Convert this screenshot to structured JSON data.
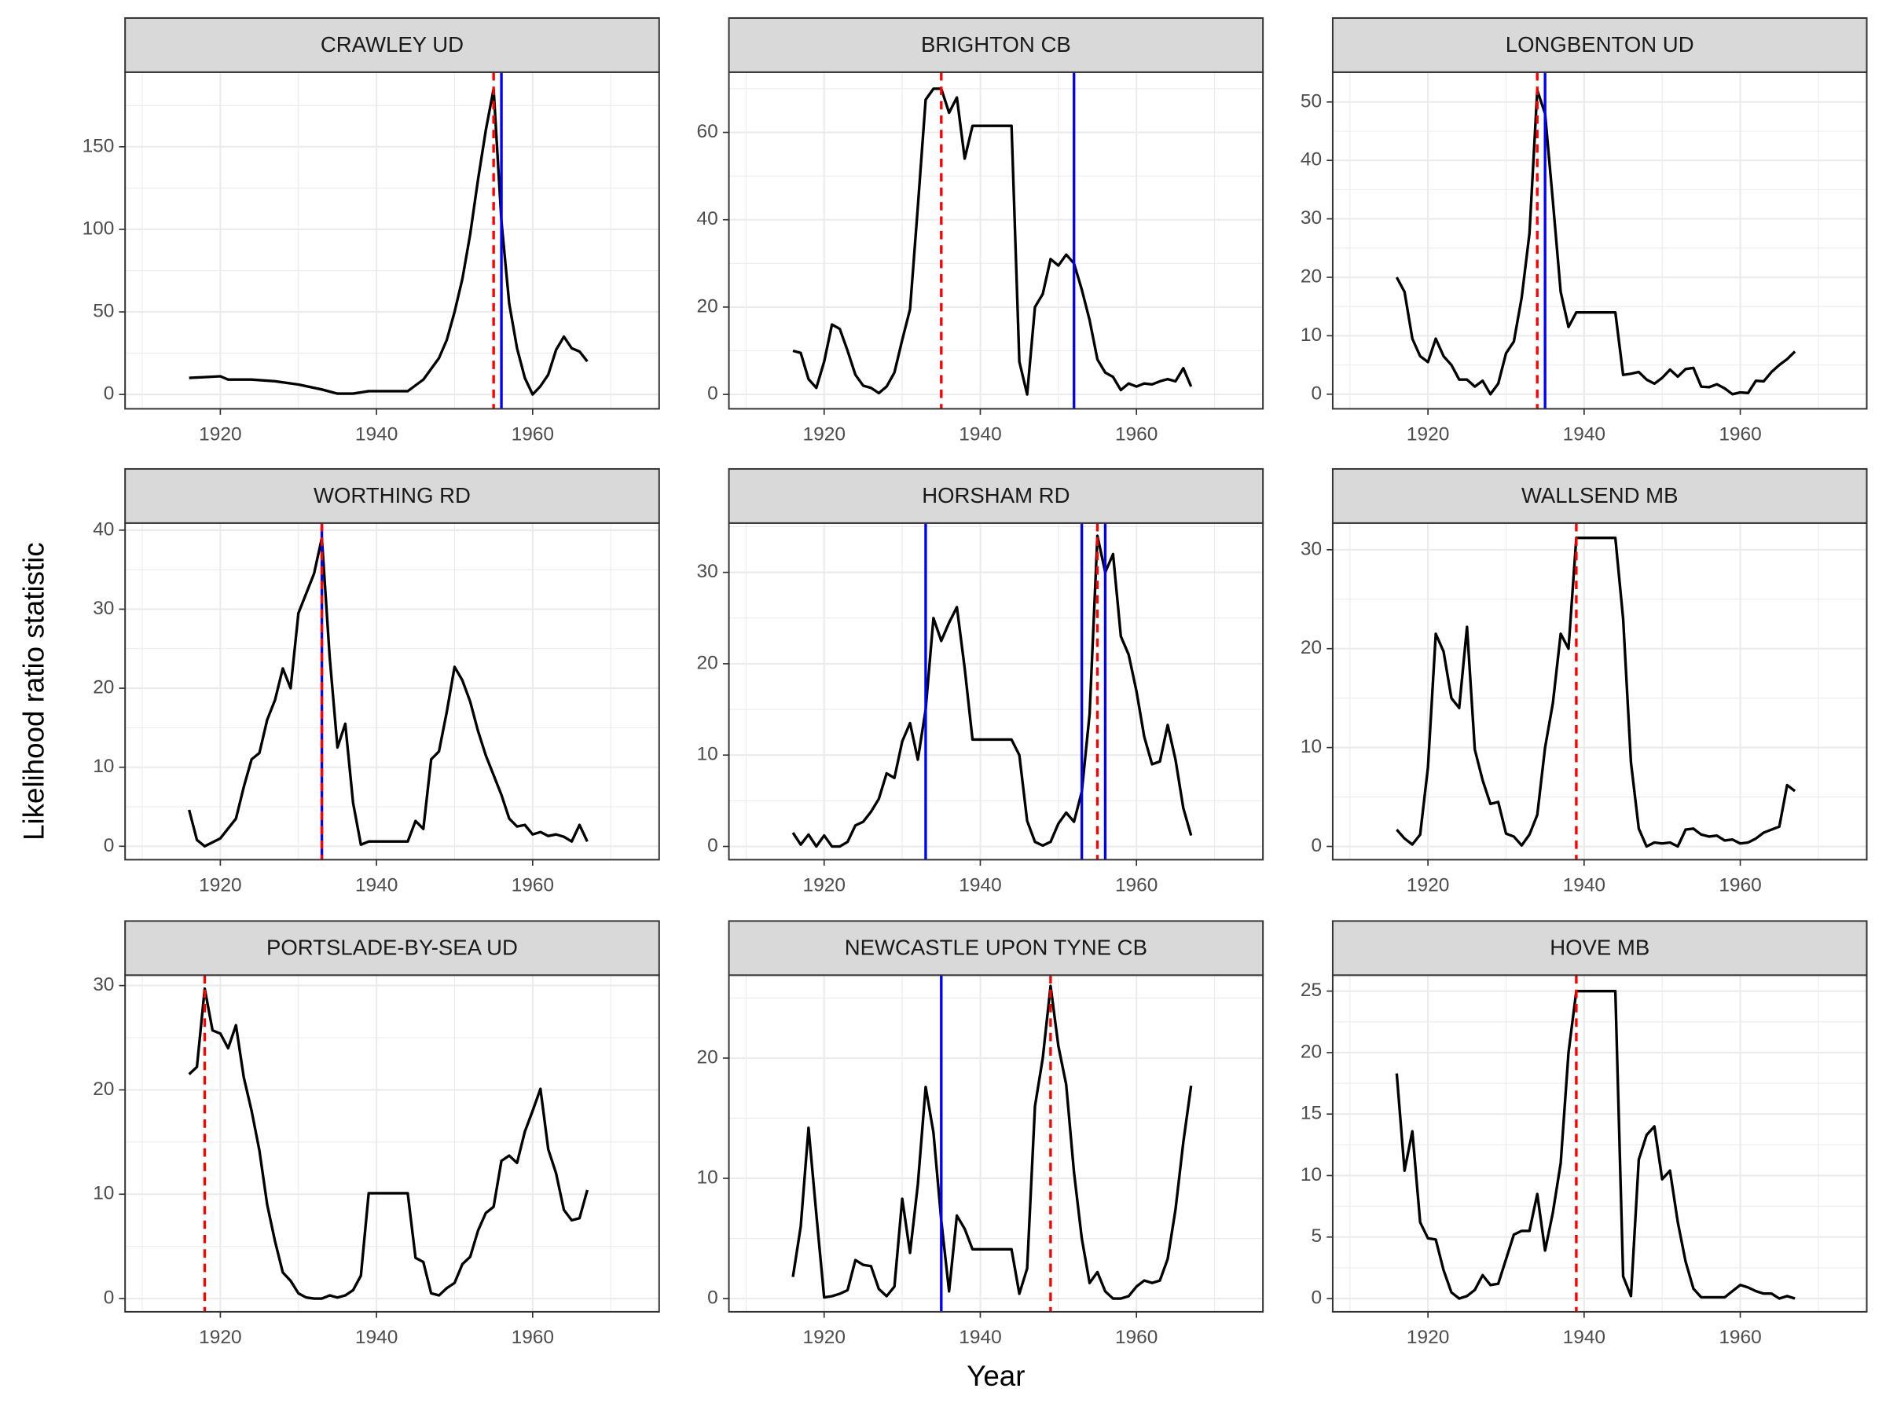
{
  "xlabel": "Year",
  "ylabel": "Likelihood ratio statistic",
  "chart_data": [
    {
      "type": "line",
      "title": "CRAWLEY UD",
      "color": "#000000",
      "x": [
        1916,
        1920,
        1921,
        1924,
        1927,
        1930,
        1933,
        1935,
        1937,
        1939,
        1944,
        1946,
        1948,
        1949,
        1950,
        1951,
        1952,
        1953,
        1954,
        1955,
        1956,
        1957,
        1958,
        1959,
        1960,
        1961,
        1962,
        1963,
        1964,
        1965,
        1966,
        1967
      ],
      "values": [
        10,
        11,
        9,
        9,
        8,
        6,
        3,
        0.5,
        0.5,
        2,
        2,
        9,
        22,
        33,
        50,
        70,
        97,
        130,
        160,
        185,
        105,
        55,
        28,
        10,
        0,
        5,
        12,
        27,
        35,
        28,
        26,
        20
      ],
      "xlim": [
        1907.8,
        1976.2
      ],
      "ylim": [
        -8.7,
        195.2
      ],
      "xticks": [
        1920,
        1940,
        1960
      ],
      "yticks": [
        0,
        50,
        100,
        150
      ],
      "xminor": [
        1910,
        1930,
        1950,
        1970
      ],
      "yminor": [
        25,
        75,
        125,
        175
      ],
      "vlines": [
        {
          "x": 1955,
          "color": "#ff0000",
          "style": "dashed"
        },
        {
          "x": 1956,
          "color": "#0000ff",
          "style": "solid"
        }
      ]
    },
    {
      "type": "line",
      "title": "BRIGHTON CB",
      "color": "#000000",
      "x": [
        1916,
        1917,
        1918,
        1919,
        1920,
        1921,
        1922,
        1923,
        1924,
        1925,
        1926,
        1927,
        1928,
        1929,
        1930,
        1931,
        1932,
        1933,
        1934,
        1935,
        1936,
        1937,
        1938,
        1939,
        1944,
        1945,
        1946,
        1947,
        1948,
        1949,
        1950,
        1951,
        1952,
        1953,
        1954,
        1955,
        1956,
        1957,
        1958,
        1959,
        1960,
        1961,
        1962,
        1963,
        1964,
        1965,
        1966,
        1967
      ],
      "values": [
        10,
        9.5,
        3.5,
        1.5,
        7.5,
        16,
        15,
        10,
        4.5,
        2,
        1.5,
        0.3,
        1.8,
        5,
        12.5,
        19.5,
        43,
        67.5,
        70,
        70,
        64.5,
        68,
        54,
        61.5,
        61.5,
        7.5,
        0,
        20,
        23,
        31,
        29.5,
        32,
        30,
        24,
        17,
        8,
        5,
        4,
        1,
        2.5,
        1.8,
        2.5,
        2.3,
        3,
        3.5,
        3,
        6,
        1.8
      ],
      "xlim": [
        1907.8,
        1976.2
      ],
      "ylim": [
        -3.3,
        73.8
      ],
      "xticks": [
        1920,
        1940,
        1960
      ],
      "yticks": [
        0,
        20,
        40,
        60
      ],
      "xminor": [
        1910,
        1930,
        1950,
        1970
      ],
      "yminor": [
        10,
        30,
        50,
        70
      ],
      "vlines": [
        {
          "x": 1935,
          "color": "#ff0000",
          "style": "dashed"
        },
        {
          "x": 1952,
          "color": "#0000ff",
          "style": "solid"
        }
      ]
    },
    {
      "type": "line",
      "title": "LONGBENTON UD",
      "color": "#000000",
      "x": [
        1916,
        1917,
        1918,
        1919,
        1920,
        1921,
        1922,
        1923,
        1924,
        1925,
        1926,
        1927,
        1928,
        1929,
        1930,
        1931,
        1932,
        1933,
        1934,
        1935,
        1936,
        1937,
        1938,
        1939,
        1944,
        1945,
        1946,
        1947,
        1948,
        1949,
        1950,
        1951,
        1952,
        1953,
        1954,
        1955,
        1956,
        1957,
        1958,
        1959,
        1960,
        1961,
        1962,
        1963,
        1964,
        1965,
        1966,
        1967
      ],
      "values": [
        20,
        17.5,
        9.5,
        6.5,
        5.5,
        9.5,
        6.5,
        5,
        2.5,
        2.5,
        1.3,
        2.3,
        0,
        1.8,
        7,
        9,
        16.5,
        27.5,
        52,
        48,
        33,
        17.5,
        11.5,
        14,
        14,
        3.3,
        3.5,
        3.8,
        2.5,
        1.8,
        2.8,
        4.2,
        3,
        4.3,
        4.5,
        1.3,
        1.2,
        1.7,
        1,
        0,
        0.3,
        0.2,
        2.3,
        2.2,
        3.8,
        5,
        6,
        7.3
      ],
      "xlim": [
        1907.8,
        1976.2
      ],
      "ylim": [
        -2.5,
        55.1
      ],
      "xticks": [
        1920,
        1940,
        1960
      ],
      "yticks": [
        0,
        10,
        20,
        30,
        40,
        50
      ],
      "xminor": [
        1910,
        1930,
        1950,
        1970
      ],
      "yminor": [
        5,
        15,
        25,
        35,
        45,
        55
      ],
      "vlines": [
        {
          "x": 1934,
          "color": "#ff0000",
          "style": "dashed"
        },
        {
          "x": 1935,
          "color": "#0000ff",
          "style": "solid"
        }
      ]
    },
    {
      "type": "line",
      "title": "WORTHING RD",
      "color": "#000000",
      "x": [
        1916,
        1917,
        1918,
        1920,
        1922,
        1923,
        1924,
        1925,
        1926,
        1927,
        1928,
        1929,
        1930,
        1931,
        1932,
        1933,
        1934,
        1935,
        1936,
        1937,
        1938,
        1939,
        1944,
        1945,
        1946,
        1947,
        1948,
        1949,
        1950,
        1951,
        1952,
        1953,
        1954,
        1955,
        1956,
        1957,
        1958,
        1959,
        1960,
        1961,
        1962,
        1963,
        1964,
        1965,
        1966,
        1967
      ],
      "values": [
        4.6,
        0.8,
        0,
        1,
        3.5,
        7.5,
        11,
        11.8,
        16,
        18.5,
        22.5,
        20,
        29.5,
        32,
        34.5,
        39,
        24,
        12.5,
        15.5,
        5.5,
        0.2,
        0.6,
        0.6,
        3.2,
        2.2,
        11,
        12,
        17,
        22.7,
        21,
        18.3,
        14.6,
        11.5,
        9,
        6.5,
        3.5,
        2.5,
        2.7,
        1.5,
        1.8,
        1.3,
        1.5,
        1.2,
        0.6,
        2.7,
        0.6
      ],
      "xlim": [
        1907.8,
        1976.2
      ],
      "ylim": [
        -1.7,
        40.9
      ],
      "xticks": [
        1920,
        1940,
        1960
      ],
      "yticks": [
        0,
        10,
        20,
        30,
        40
      ],
      "xminor": [
        1910,
        1930,
        1950,
        1970
      ],
      "yminor": [
        5,
        15,
        25,
        35
      ],
      "vlines": [
        {
          "x": 1933,
          "color": "#0000ff",
          "style": "solid"
        },
        {
          "x": 1933,
          "color": "#ff0000",
          "style": "dashed"
        }
      ]
    },
    {
      "type": "line",
      "title": "HORSHAM RD",
      "color": "#000000",
      "x": [
        1916,
        1917,
        1918,
        1919,
        1920,
        1921,
        1922,
        1923,
        1924,
        1925,
        1926,
        1927,
        1928,
        1929,
        1930,
        1931,
        1932,
        1933,
        1934,
        1935,
        1936,
        1937,
        1938,
        1939,
        1944,
        1945,
        1946,
        1947,
        1948,
        1949,
        1950,
        1951,
        1952,
        1953,
        1954,
        1955,
        1956,
        1957,
        1958,
        1959,
        1960,
        1961,
        1962,
        1963,
        1964,
        1965,
        1966,
        1967
      ],
      "values": [
        1.5,
        0.2,
        1.3,
        0,
        1.2,
        0,
        0,
        0.5,
        2.3,
        2.7,
        3.8,
        5.2,
        8,
        7.5,
        11.5,
        13.5,
        9.5,
        15,
        25,
        22.5,
        24.5,
        26.2,
        19.5,
        11.7,
        11.7,
        10,
        2.8,
        0.5,
        0.1,
        0.5,
        2.5,
        3.7,
        2.7,
        6,
        14.5,
        34,
        30,
        32,
        23,
        21,
        17,
        12,
        9,
        9.3,
        13.3,
        9.5,
        4.2,
        1.2
      ],
      "xlim": [
        1907.8,
        1976.2
      ],
      "ylim": [
        -1.45,
        35.4
      ],
      "xticks": [
        1920,
        1940,
        1960
      ],
      "yticks": [
        0,
        10,
        20,
        30
      ],
      "xminor": [
        1910,
        1930,
        1950,
        1970
      ],
      "yminor": [
        5,
        15,
        25,
        35
      ],
      "vlines": [
        {
          "x": 1955,
          "color": "#ff0000",
          "style": "dashed"
        },
        {
          "x": 1933,
          "color": "#0000ff",
          "style": "solid"
        },
        {
          "x": 1953,
          "color": "#0000ff",
          "style": "solid"
        },
        {
          "x": 1956,
          "color": "#0000ff",
          "style": "solid"
        }
      ]
    },
    {
      "type": "line",
      "title": "WALLSEND MB",
      "color": "#000000",
      "x": [
        1916,
        1917,
        1918,
        1919,
        1920,
        1921,
        1922,
        1923,
        1924,
        1925,
        1926,
        1927,
        1928,
        1929,
        1930,
        1931,
        1932,
        1933,
        1934,
        1935,
        1936,
        1937,
        1938,
        1939,
        1944,
        1945,
        1946,
        1947,
        1948,
        1949,
        1950,
        1951,
        1952,
        1953,
        1954,
        1955,
        1956,
        1957,
        1958,
        1959,
        1960,
        1961,
        1962,
        1963,
        1964,
        1965,
        1966,
        1967
      ],
      "values": [
        1.7,
        0.8,
        0.2,
        1.2,
        8,
        21.5,
        19.7,
        15,
        14,
        22.2,
        9.8,
        6.7,
        4.3,
        4.5,
        1.3,
        1,
        0.1,
        1.2,
        3.2,
        10,
        14.5,
        21.5,
        20,
        31.2,
        31.2,
        23,
        8.5,
        1.8,
        0,
        0.4,
        0.3,
        0.4,
        0,
        1.7,
        1.8,
        1.2,
        1,
        1.1,
        0.6,
        0.7,
        0.3,
        0.4,
        0.8,
        1.4,
        1.7,
        2,
        6.2,
        5.6
      ],
      "xlim": [
        1907.8,
        1976.2
      ],
      "ylim": [
        -1.34,
        32.7
      ],
      "xticks": [
        1920,
        1940,
        1960
      ],
      "yticks": [
        0,
        10,
        20,
        30
      ],
      "xminor": [
        1910,
        1930,
        1950,
        1970
      ],
      "yminor": [
        5,
        15,
        25
      ],
      "vlines": [
        {
          "x": 1939,
          "color": "#ff0000",
          "style": "dashed"
        }
      ]
    },
    {
      "type": "line",
      "title": "PORTSLADE-BY-SEA UD",
      "color": "#000000",
      "x": [
        1916,
        1917,
        1918,
        1919,
        1920,
        1921,
        1922,
        1923,
        1924,
        1925,
        1926,
        1927,
        1928,
        1929,
        1930,
        1931,
        1932,
        1933,
        1934,
        1935,
        1936,
        1937,
        1938,
        1939,
        1944,
        1945,
        1946,
        1947,
        1948,
        1949,
        1950,
        1951,
        1952,
        1953,
        1954,
        1955,
        1956,
        1957,
        1958,
        1959,
        1960,
        1961,
        1962,
        1963,
        1964,
        1965,
        1966,
        1967
      ],
      "values": [
        21.5,
        22.2,
        29.7,
        25.7,
        25.4,
        24,
        26.2,
        21.2,
        18,
        14.2,
        9,
        5.5,
        2.5,
        1.7,
        0.5,
        0.1,
        0,
        0,
        0.3,
        0.1,
        0.3,
        0.8,
        2.2,
        10.1,
        10.1,
        3.9,
        3.5,
        0.5,
        0.3,
        1,
        1.5,
        3.3,
        4,
        6.5,
        8.2,
        8.8,
        13.2,
        13.7,
        13,
        16,
        18,
        20.1,
        14.3,
        12,
        8.5,
        7.5,
        7.7,
        10.4
      ],
      "xlim": [
        1907.8,
        1976.2
      ],
      "ylim": [
        -1.27,
        31.0
      ],
      "xticks": [
        1920,
        1940,
        1960
      ],
      "yticks": [
        0,
        10,
        20,
        30
      ],
      "xminor": [
        1910,
        1930,
        1950,
        1970
      ],
      "yminor": [
        5,
        15,
        25
      ],
      "vlines": [
        {
          "x": 1918,
          "color": "#ff0000",
          "style": "dashed"
        }
      ]
    },
    {
      "type": "line",
      "title": "NEWCASTLE UPON TYNE CB",
      "color": "#000000",
      "x": [
        1916,
        1917,
        1918,
        1919,
        1920,
        1921,
        1922,
        1923,
        1924,
        1925,
        1926,
        1927,
        1928,
        1929,
        1930,
        1931,
        1932,
        1933,
        1934,
        1935,
        1936,
        1937,
        1938,
        1939,
        1944,
        1945,
        1946,
        1947,
        1948,
        1949,
        1950,
        1951,
        1952,
        1953,
        1954,
        1955,
        1956,
        1957,
        1958,
        1959,
        1960,
        1961,
        1962,
        1963,
        1964,
        1965,
        1966,
        1967
      ],
      "values": [
        1.8,
        6,
        14.2,
        7,
        0.1,
        0.2,
        0.4,
        0.7,
        3.2,
        2.8,
        2.7,
        0.8,
        0.2,
        1,
        8.3,
        3.8,
        9.5,
        17.6,
        13.8,
        6.5,
        0.6,
        6.9,
        5.8,
        4.1,
        4.1,
        0.4,
        2.5,
        16,
        20,
        26,
        21,
        17.8,
        10.5,
        5,
        1.3,
        2.2,
        0.6,
        0,
        0,
        0.2,
        1,
        1.5,
        1.3,
        1.5,
        3.3,
        7.4,
        13,
        17.7
      ],
      "xlim": [
        1907.8,
        1976.2
      ],
      "ylim": [
        -1.1,
        26.9
      ],
      "xticks": [
        1920,
        1940,
        1960
      ],
      "yticks": [
        0,
        10,
        20
      ],
      "xminor": [
        1910,
        1930,
        1950,
        1970
      ],
      "yminor": [
        5,
        15,
        25
      ],
      "vlines": [
        {
          "x": 1949,
          "color": "#ff0000",
          "style": "dashed"
        },
        {
          "x": 1935,
          "color": "#0000ff",
          "style": "solid"
        }
      ]
    },
    {
      "type": "line",
      "title": "HOVE MB",
      "color": "#000000",
      "x": [
        1916,
        1917,
        1918,
        1919,
        1920,
        1921,
        1922,
        1923,
        1924,
        1925,
        1926,
        1927,
        1928,
        1929,
        1930,
        1931,
        1932,
        1933,
        1934,
        1935,
        1936,
        1937,
        1938,
        1939,
        1944,
        1945,
        1946,
        1947,
        1948,
        1949,
        1950,
        1951,
        1952,
        1953,
        1954,
        1955,
        1956,
        1957,
        1958,
        1959,
        1960,
        1961,
        1962,
        1963,
        1964,
        1965,
        1966,
        1967
      ],
      "values": [
        18.3,
        10.4,
        13.6,
        6.2,
        4.9,
        4.8,
        2.3,
        0.5,
        0,
        0.2,
        0.7,
        1.9,
        1.1,
        1.2,
        3.2,
        5.2,
        5.5,
        5.5,
        8.5,
        3.9,
        7,
        11,
        20,
        25,
        25,
        1.8,
        0.2,
        11.3,
        13.3,
        14,
        9.7,
        10.4,
        6.2,
        3,
        0.8,
        0.1,
        0.1,
        0.1,
        0.1,
        0.6,
        1.1,
        0.9,
        0.6,
        0.4,
        0.4,
        0,
        0.2,
        0
      ],
      "xlim": [
        1907.8,
        1976.2
      ],
      "ylim": [
        -1.08,
        26.3
      ],
      "xticks": [
        1920,
        1940,
        1960
      ],
      "yticks": [
        0,
        5,
        10,
        15,
        20,
        25
      ],
      "xminor": [
        1910,
        1930,
        1950,
        1970
      ],
      "yminor": [
        2.5,
        7.5,
        12.5,
        17.5,
        22.5
      ],
      "vlines": [
        {
          "x": 1939,
          "color": "#ff0000",
          "style": "dashed"
        }
      ]
    }
  ]
}
